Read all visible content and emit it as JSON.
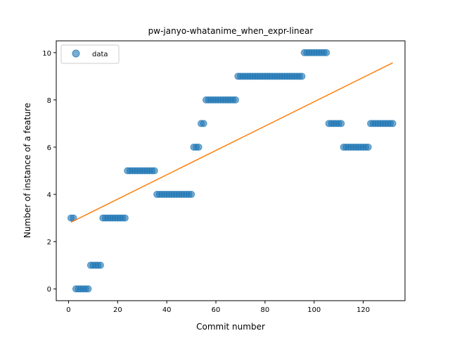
{
  "chart_data": {
    "type": "scatter",
    "title": "pw-janyo-whatanime_when_expr-linear",
    "xlabel": "Commit number",
    "ylabel": "Number of instance of a feature",
    "xlim": [
      -5,
      137
    ],
    "ylim": [
      -0.5,
      10.5
    ],
    "xticks": [
      0,
      20,
      40,
      60,
      80,
      100,
      120
    ],
    "yticks": [
      0,
      2,
      4,
      6,
      8,
      10
    ],
    "grid": false,
    "legend": {
      "position": "top-left",
      "entries": [
        "data"
      ]
    },
    "series": [
      {
        "name": "data",
        "kind": "points",
        "color": "#1f77b4",
        "x": [
          1,
          2,
          3,
          4,
          5,
          6,
          7,
          8,
          9,
          10,
          11,
          12,
          13,
          14,
          15,
          16,
          17,
          18,
          19,
          20,
          21,
          22,
          23,
          24,
          25,
          26,
          27,
          28,
          29,
          30,
          31,
          32,
          33,
          34,
          35,
          36,
          37,
          38,
          39,
          40,
          41,
          42,
          43,
          44,
          45,
          46,
          47,
          48,
          49,
          50,
          51,
          52,
          53,
          54,
          55,
          56,
          57,
          58,
          59,
          60,
          61,
          62,
          63,
          64,
          65,
          66,
          67,
          68,
          69,
          70,
          71,
          72,
          73,
          74,
          75,
          76,
          77,
          78,
          79,
          80,
          81,
          82,
          83,
          84,
          85,
          86,
          87,
          88,
          89,
          90,
          91,
          92,
          93,
          94,
          95,
          96,
          97,
          98,
          99,
          100,
          101,
          102,
          103,
          104,
          105,
          106,
          107,
          108,
          109,
          110,
          111,
          112,
          113,
          114,
          115,
          116,
          117,
          118,
          119,
          120,
          121,
          122,
          123,
          124,
          125,
          126,
          127,
          128,
          129,
          130,
          131,
          132
        ],
        "y": [
          3,
          3,
          0,
          0,
          0,
          0,
          0,
          0,
          1,
          1,
          1,
          1,
          1,
          3,
          3,
          3,
          3,
          3,
          3,
          3,
          3,
          3,
          3,
          5,
          5,
          5,
          5,
          5,
          5,
          5,
          5,
          5,
          5,
          5,
          5,
          4,
          4,
          4,
          4,
          4,
          4,
          4,
          4,
          4,
          4,
          4,
          4,
          4,
          4,
          4,
          6,
          6,
          6,
          7,
          7,
          8,
          8,
          8,
          8,
          8,
          8,
          8,
          8,
          8,
          8,
          8,
          8,
          8,
          9,
          9,
          9,
          9,
          9,
          9,
          9,
          9,
          9,
          9,
          9,
          9,
          9,
          9,
          9,
          9,
          9,
          9,
          9,
          9,
          9,
          9,
          9,
          9,
          9,
          9,
          9,
          10,
          10,
          10,
          10,
          10,
          10,
          10,
          10,
          10,
          10,
          7,
          7,
          7,
          7,
          7,
          7,
          6,
          6,
          6,
          6,
          6,
          6,
          6,
          6,
          6,
          6,
          6,
          7,
          7,
          7,
          7,
          7,
          7,
          7,
          7,
          7,
          7
        ]
      },
      {
        "name": "",
        "kind": "line",
        "color": "#ff7f0e",
        "x": [
          1,
          132
        ],
        "y": [
          2.82,
          9.57
        ]
      }
    ]
  }
}
